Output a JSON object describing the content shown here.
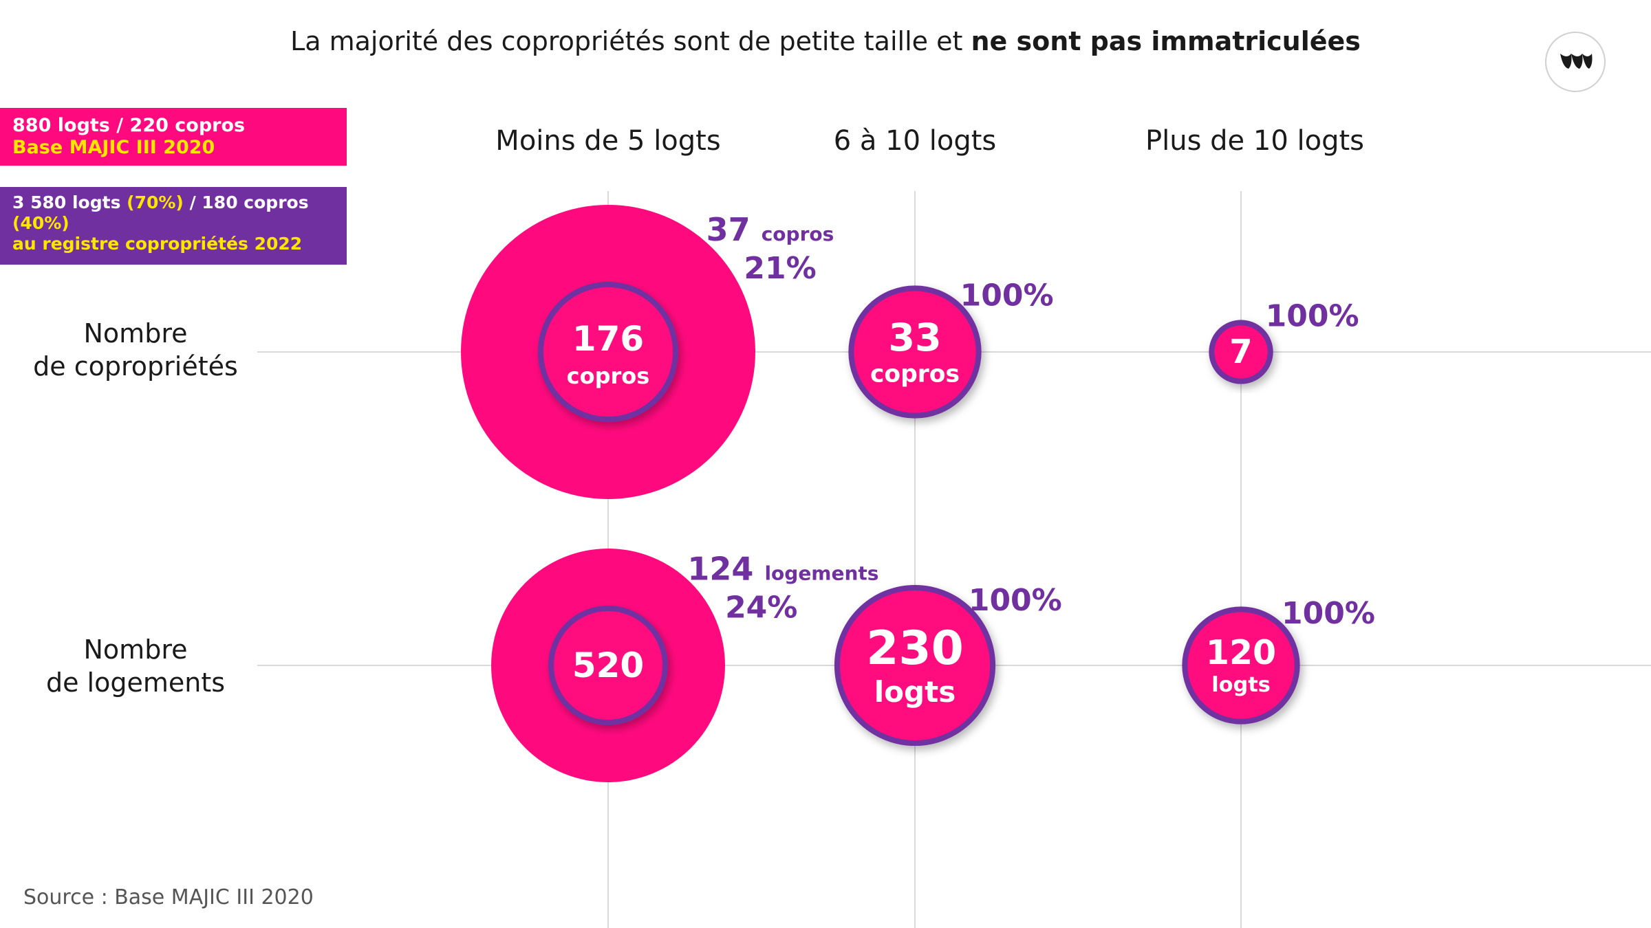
{
  "title": {
    "regular": "La majorité des copropriétés sont de petite taille et ",
    "bold": "ne sont pas immatriculées"
  },
  "legend": {
    "pink": {
      "line1": "880 logts / 220 copros",
      "line2": "Base MAJIC III 2020"
    },
    "purple": {
      "line1_a": "3 580 logts ",
      "line1_b": "(70%)",
      "line1_c": " / 180 copros",
      "line2": "(40%)",
      "line3": "au registre copropriétés 2022"
    }
  },
  "source": "Source : Base MAJIC III 2020",
  "colors": {
    "pink": "#ff0a7e",
    "purple": "#7030a0",
    "yellow": "#ffe600",
    "grid": "#d9d9d9"
  },
  "chart_data": {
    "type": "bubble",
    "columns": [
      "Moins de 5 logts",
      "6 à 10 logts",
      "Plus de 10 logts"
    ],
    "rows": [
      {
        "label_line1": "Nombre",
        "label_line2": "de copropriétés",
        "cells": [
          {
            "total": 176,
            "unit": "copros",
            "registered": 37,
            "registered_unit": "copros",
            "pct": "21%"
          },
          {
            "total": 33,
            "unit": "copros",
            "pct": "100%"
          },
          {
            "total": 7,
            "unit": "",
            "pct": "100%"
          }
        ]
      },
      {
        "label_line1": "Nombre",
        "label_line2": "de logements",
        "cells": [
          {
            "total": 520,
            "unit": "",
            "registered": 124,
            "registered_unit": "logements",
            "pct": "24%"
          },
          {
            "total": 230,
            "unit": "logts",
            "pct": "100%"
          },
          {
            "total": 120,
            "unit": "logts",
            "pct": "100%"
          }
        ]
      }
    ],
    "series": [
      {
        "name": "880 logts / 220 copros Base MAJIC III 2020",
        "color": "#ff0a7e"
      },
      {
        "name": "3 580 logts (70%) / 180 copros (40%) au registre copropriétés 2022",
        "color": "#7030a0"
      }
    ]
  }
}
